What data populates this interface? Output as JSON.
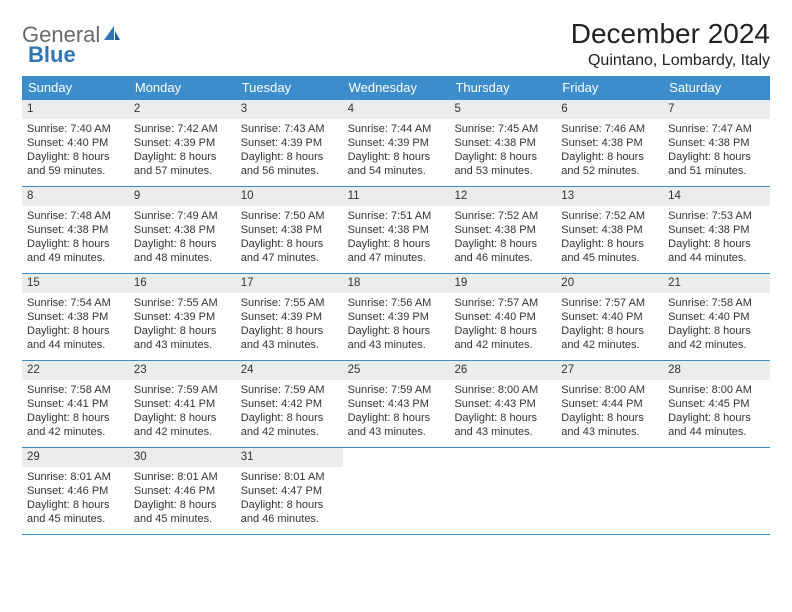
{
  "brand": {
    "word1": "General",
    "word2": "Blue"
  },
  "title": "December 2024",
  "location": "Quintano, Lombardy, Italy",
  "colors": {
    "header_bar": "#3c8dcc",
    "header_text": "#ffffff",
    "num_bar_bg": "#ececec",
    "rule": "#3c8dcc",
    "brand_gray": "#6a6a6a",
    "brand_blue": "#2f75b5",
    "text": "#333333",
    "page_bg": "#ffffff"
  },
  "dows": [
    "Sunday",
    "Monday",
    "Tuesday",
    "Wednesday",
    "Thursday",
    "Friday",
    "Saturday"
  ],
  "weeks": [
    [
      {
        "n": "1",
        "sr": "Sunrise: 7:40 AM",
        "ss": "Sunset: 4:40 PM",
        "d1": "Daylight: 8 hours",
        "d2": "and 59 minutes."
      },
      {
        "n": "2",
        "sr": "Sunrise: 7:42 AM",
        "ss": "Sunset: 4:39 PM",
        "d1": "Daylight: 8 hours",
        "d2": "and 57 minutes."
      },
      {
        "n": "3",
        "sr": "Sunrise: 7:43 AM",
        "ss": "Sunset: 4:39 PM",
        "d1": "Daylight: 8 hours",
        "d2": "and 56 minutes."
      },
      {
        "n": "4",
        "sr": "Sunrise: 7:44 AM",
        "ss": "Sunset: 4:39 PM",
        "d1": "Daylight: 8 hours",
        "d2": "and 54 minutes."
      },
      {
        "n": "5",
        "sr": "Sunrise: 7:45 AM",
        "ss": "Sunset: 4:38 PM",
        "d1": "Daylight: 8 hours",
        "d2": "and 53 minutes."
      },
      {
        "n": "6",
        "sr": "Sunrise: 7:46 AM",
        "ss": "Sunset: 4:38 PM",
        "d1": "Daylight: 8 hours",
        "d2": "and 52 minutes."
      },
      {
        "n": "7",
        "sr": "Sunrise: 7:47 AM",
        "ss": "Sunset: 4:38 PM",
        "d1": "Daylight: 8 hours",
        "d2": "and 51 minutes."
      }
    ],
    [
      {
        "n": "8",
        "sr": "Sunrise: 7:48 AM",
        "ss": "Sunset: 4:38 PM",
        "d1": "Daylight: 8 hours",
        "d2": "and 49 minutes."
      },
      {
        "n": "9",
        "sr": "Sunrise: 7:49 AM",
        "ss": "Sunset: 4:38 PM",
        "d1": "Daylight: 8 hours",
        "d2": "and 48 minutes."
      },
      {
        "n": "10",
        "sr": "Sunrise: 7:50 AM",
        "ss": "Sunset: 4:38 PM",
        "d1": "Daylight: 8 hours",
        "d2": "and 47 minutes."
      },
      {
        "n": "11",
        "sr": "Sunrise: 7:51 AM",
        "ss": "Sunset: 4:38 PM",
        "d1": "Daylight: 8 hours",
        "d2": "and 47 minutes."
      },
      {
        "n": "12",
        "sr": "Sunrise: 7:52 AM",
        "ss": "Sunset: 4:38 PM",
        "d1": "Daylight: 8 hours",
        "d2": "and 46 minutes."
      },
      {
        "n": "13",
        "sr": "Sunrise: 7:52 AM",
        "ss": "Sunset: 4:38 PM",
        "d1": "Daylight: 8 hours",
        "d2": "and 45 minutes."
      },
      {
        "n": "14",
        "sr": "Sunrise: 7:53 AM",
        "ss": "Sunset: 4:38 PM",
        "d1": "Daylight: 8 hours",
        "d2": "and 44 minutes."
      }
    ],
    [
      {
        "n": "15",
        "sr": "Sunrise: 7:54 AM",
        "ss": "Sunset: 4:38 PM",
        "d1": "Daylight: 8 hours",
        "d2": "and 44 minutes."
      },
      {
        "n": "16",
        "sr": "Sunrise: 7:55 AM",
        "ss": "Sunset: 4:39 PM",
        "d1": "Daylight: 8 hours",
        "d2": "and 43 minutes."
      },
      {
        "n": "17",
        "sr": "Sunrise: 7:55 AM",
        "ss": "Sunset: 4:39 PM",
        "d1": "Daylight: 8 hours",
        "d2": "and 43 minutes."
      },
      {
        "n": "18",
        "sr": "Sunrise: 7:56 AM",
        "ss": "Sunset: 4:39 PM",
        "d1": "Daylight: 8 hours",
        "d2": "and 43 minutes."
      },
      {
        "n": "19",
        "sr": "Sunrise: 7:57 AM",
        "ss": "Sunset: 4:40 PM",
        "d1": "Daylight: 8 hours",
        "d2": "and 42 minutes."
      },
      {
        "n": "20",
        "sr": "Sunrise: 7:57 AM",
        "ss": "Sunset: 4:40 PM",
        "d1": "Daylight: 8 hours",
        "d2": "and 42 minutes."
      },
      {
        "n": "21",
        "sr": "Sunrise: 7:58 AM",
        "ss": "Sunset: 4:40 PM",
        "d1": "Daylight: 8 hours",
        "d2": "and 42 minutes."
      }
    ],
    [
      {
        "n": "22",
        "sr": "Sunrise: 7:58 AM",
        "ss": "Sunset: 4:41 PM",
        "d1": "Daylight: 8 hours",
        "d2": "and 42 minutes."
      },
      {
        "n": "23",
        "sr": "Sunrise: 7:59 AM",
        "ss": "Sunset: 4:41 PM",
        "d1": "Daylight: 8 hours",
        "d2": "and 42 minutes."
      },
      {
        "n": "24",
        "sr": "Sunrise: 7:59 AM",
        "ss": "Sunset: 4:42 PM",
        "d1": "Daylight: 8 hours",
        "d2": "and 42 minutes."
      },
      {
        "n": "25",
        "sr": "Sunrise: 7:59 AM",
        "ss": "Sunset: 4:43 PM",
        "d1": "Daylight: 8 hours",
        "d2": "and 43 minutes."
      },
      {
        "n": "26",
        "sr": "Sunrise: 8:00 AM",
        "ss": "Sunset: 4:43 PM",
        "d1": "Daylight: 8 hours",
        "d2": "and 43 minutes."
      },
      {
        "n": "27",
        "sr": "Sunrise: 8:00 AM",
        "ss": "Sunset: 4:44 PM",
        "d1": "Daylight: 8 hours",
        "d2": "and 43 minutes."
      },
      {
        "n": "28",
        "sr": "Sunrise: 8:00 AM",
        "ss": "Sunset: 4:45 PM",
        "d1": "Daylight: 8 hours",
        "d2": "and 44 minutes."
      }
    ],
    [
      {
        "n": "29",
        "sr": "Sunrise: 8:01 AM",
        "ss": "Sunset: 4:46 PM",
        "d1": "Daylight: 8 hours",
        "d2": "and 45 minutes."
      },
      {
        "n": "30",
        "sr": "Sunrise: 8:01 AM",
        "ss": "Sunset: 4:46 PM",
        "d1": "Daylight: 8 hours",
        "d2": "and 45 minutes."
      },
      {
        "n": "31",
        "sr": "Sunrise: 8:01 AM",
        "ss": "Sunset: 4:47 PM",
        "d1": "Daylight: 8 hours",
        "d2": "and 46 minutes."
      },
      {
        "empty": true
      },
      {
        "empty": true
      },
      {
        "empty": true
      },
      {
        "empty": true
      }
    ]
  ]
}
